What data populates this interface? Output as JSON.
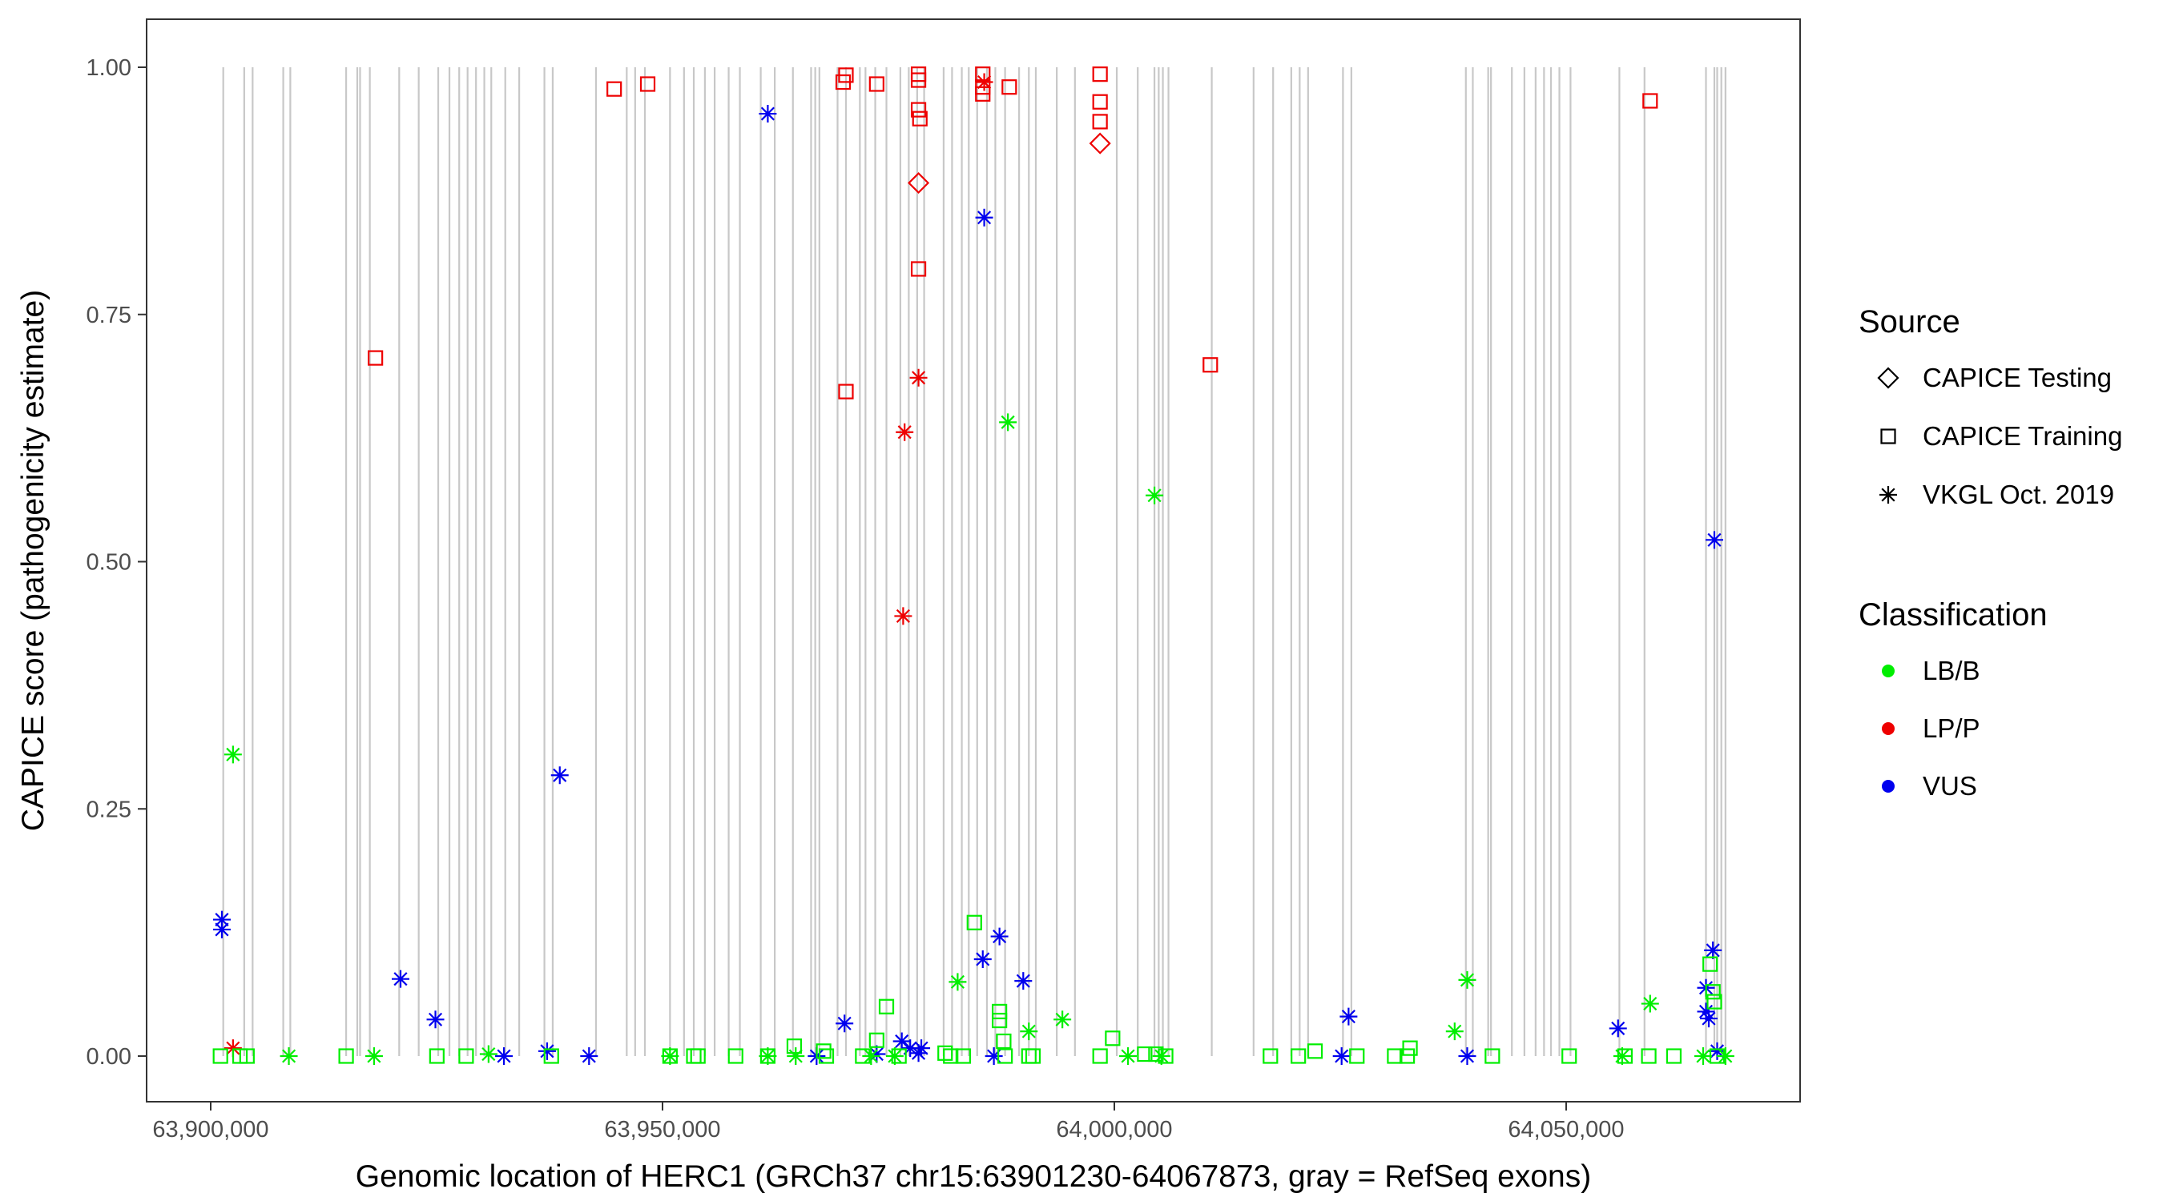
{
  "chart_data": {
    "type": "scatter",
    "title": "",
    "xlabel": "Genomic location of HERC1 (GRCh37 chr15:63901230-64067873, gray = RefSeq exons)",
    "ylabel": "CAPICE score (pathogenicity estimate)",
    "xlim": [
      63893000,
      64072000
    ],
    "ylim": [
      -0.05,
      1.05
    ],
    "x_ticks": [
      63900000,
      63950000,
      64000000,
      64050000
    ],
    "x_tick_labels": [
      "63,900,000",
      "63,950,000",
      "64,000,000",
      "64,050,000"
    ],
    "y_ticks": [
      0,
      0.25,
      0.5,
      0.75,
      1.0
    ],
    "y_tick_labels": [
      "0.00",
      "0.25",
      "0.50",
      "0.75",
      "1.00"
    ],
    "grid": false,
    "legend_placement": "right",
    "legend": {
      "source_title": "Source",
      "source_items": [
        {
          "label": "CAPICE Testing",
          "shape": "diamond"
        },
        {
          "label": "CAPICE Training",
          "shape": "square"
        },
        {
          "label": "VKGL Oct. 2019",
          "shape": "asterisk"
        }
      ],
      "class_title": "Classification",
      "class_items": [
        {
          "label": "LB/B",
          "color": "#00ee00"
        },
        {
          "label": "LP/P",
          "color": "#ee0000"
        },
        {
          "label": "VUS",
          "color": "#0000ee"
        }
      ]
    },
    "exon_color": "#c8c8c8",
    "exons": [
      63901390,
      63903710,
      63904640,
      63908030,
      63908810,
      63914990,
      63916220,
      63916530,
      63917610,
      63920860,
      63923020,
      63925180,
      63926420,
      63927500,
      63928430,
      63929360,
      63930280,
      63931050,
      63932600,
      63934140,
      63936930,
      63937850,
      63942640,
      63946040,
      63946970,
      63948050,
      63950830,
      63952380,
      63953460,
      63954690,
      63955770,
      63957320,
      63958560,
      63960870,
      63962420,
      63964430,
      63966440,
      63966900,
      63967360,
      63969370,
      63970300,
      63971840,
      63972460,
      63973540,
      63974780,
      63976320,
      63977250,
      63978180,
      63978950,
      63981110,
      63982040,
      63983120,
      63983890,
      63984820,
      63985900,
      63986830,
      63987910,
      63989460,
      63990540,
      63991310,
      63993630,
      63995640,
      64000270,
      64002590,
      64004440,
      64004910,
      64005370,
      64005990,
      64010780,
      64015410,
      64017570,
      64019580,
      64020510,
      64021440,
      64025300,
      64026230,
      64038900,
      64039670,
      64041370,
      64041680,
      64043990,
      64045380,
      64046620,
      64047550,
      64048320,
      64049250,
      64050480,
      64055890,
      64058670,
      64065470,
      64066400,
      64066710,
      64067170,
      64067630
    ],
    "point_fields": [
      "position",
      "score",
      "source",
      "classification"
    ],
    "points": [
      [
        63944650,
        0.978,
        "CAPICE Training",
        "LP/P"
      ],
      [
        63948360,
        0.983,
        "CAPICE Training",
        "LP/P"
      ],
      [
        63969990,
        0.985,
        "CAPICE Training",
        "LP/P"
      ],
      [
        63970300,
        0.992,
        "CAPICE Training",
        "LP/P"
      ],
      [
        63973700,
        0.983,
        "CAPICE Training",
        "LP/P"
      ],
      [
        63978330,
        0.993,
        "CAPICE Training",
        "LP/P"
      ],
      [
        63978330,
        0.987,
        "CAPICE Training",
        "LP/P"
      ],
      [
        63978330,
        0.957,
        "CAPICE Training",
        "LP/P"
      ],
      [
        63978480,
        0.948,
        "CAPICE Training",
        "LP/P"
      ],
      [
        63985440,
        0.993,
        "CAPICE Training",
        "LP/P"
      ],
      [
        63985440,
        0.98,
        "CAPICE Training",
        "LP/P"
      ],
      [
        63985440,
        0.973,
        "CAPICE Training",
        "LP/P"
      ],
      [
        63988370,
        0.98,
        "CAPICE Training",
        "LP/P"
      ],
      [
        63998420,
        0.993,
        "CAPICE Training",
        "LP/P"
      ],
      [
        63998420,
        0.965,
        "CAPICE Training",
        "LP/P"
      ],
      [
        63998420,
        0.945,
        "CAPICE Training",
        "LP/P"
      ],
      [
        64059290,
        0.966,
        "CAPICE Training",
        "LP/P"
      ],
      [
        63918230,
        0.706,
        "CAPICE Training",
        "LP/P"
      ],
      [
        63970300,
        0.672,
        "CAPICE Training",
        "LP/P"
      ],
      [
        63978330,
        0.796,
        "CAPICE Training",
        "LP/P"
      ],
      [
        64010620,
        0.699,
        "CAPICE Training",
        "LP/P"
      ],
      [
        63978330,
        0.883,
        "CAPICE Testing",
        "LP/P"
      ],
      [
        63998420,
        0.923,
        "CAPICE Testing",
        "LP/P"
      ],
      [
        63985600,
        0.985,
        "VKGL Oct. 2019",
        "LP/P"
      ],
      [
        63978330,
        0.686,
        "VKGL Oct. 2019",
        "LP/P"
      ],
      [
        63976790,
        0.631,
        "VKGL Oct. 2019",
        "LP/P"
      ],
      [
        63976630,
        0.445,
        "VKGL Oct. 2019",
        "LP/P"
      ],
      [
        63902470,
        0.008,
        "VKGL Oct. 2019",
        "LP/P"
      ],
      [
        63961650,
        0.953,
        "VKGL Oct. 2019",
        "VUS"
      ],
      [
        63985600,
        0.848,
        "VKGL Oct. 2019",
        "VUS"
      ],
      [
        64066400,
        0.522,
        "VKGL Oct. 2019",
        "VUS"
      ],
      [
        63938630,
        0.284,
        "VKGL Oct. 2019",
        "VUS"
      ],
      [
        63901240,
        0.138,
        "VKGL Oct. 2019",
        "VUS"
      ],
      [
        63901240,
        0.128,
        "VKGL Oct. 2019",
        "VUS"
      ],
      [
        63921010,
        0.078,
        "VKGL Oct. 2019",
        "VUS"
      ],
      [
        63924870,
        0.037,
        "VKGL Oct. 2019",
        "VUS"
      ],
      [
        63932450,
        0.0,
        "VKGL Oct. 2019",
        "VUS"
      ],
      [
        63937230,
        0.005,
        "VKGL Oct. 2019",
        "VUS"
      ],
      [
        63941870,
        0.0,
        "VKGL Oct. 2019",
        "VUS"
      ],
      [
        63967050,
        0.0,
        "VKGL Oct. 2019",
        "VUS"
      ],
      [
        63970140,
        0.033,
        "VKGL Oct. 2019",
        "VUS"
      ],
      [
        63973700,
        0.002,
        "VKGL Oct. 2019",
        "VUS"
      ],
      [
        63976480,
        0.015,
        "VKGL Oct. 2019",
        "VUS"
      ],
      [
        63977410,
        0.008,
        "VKGL Oct. 2019",
        "VUS"
      ],
      [
        63978330,
        0.003,
        "VKGL Oct. 2019",
        "VUS"
      ],
      [
        63978640,
        0.008,
        "VKGL Oct. 2019",
        "VUS"
      ],
      [
        63985440,
        0.098,
        "VKGL Oct. 2019",
        "VUS"
      ],
      [
        63987290,
        0.121,
        "VKGL Oct. 2019",
        "VUS"
      ],
      [
        63986670,
        0.0,
        "VKGL Oct. 2019",
        "VUS"
      ],
      [
        63989920,
        0.076,
        "VKGL Oct. 2019",
        "VUS"
      ],
      [
        64025150,
        0.0,
        "VKGL Oct. 2019",
        "VUS"
      ],
      [
        64025920,
        0.04,
        "VKGL Oct. 2019",
        "VUS"
      ],
      [
        64039050,
        0.0,
        "VKGL Oct. 2019",
        "VUS"
      ],
      [
        64055740,
        0.028,
        "VKGL Oct. 2019",
        "VUS"
      ],
      [
        64065470,
        0.069,
        "VKGL Oct. 2019",
        "VUS"
      ],
      [
        64065470,
        0.045,
        "VKGL Oct. 2019",
        "VUS"
      ],
      [
        64065780,
        0.038,
        "VKGL Oct. 2019",
        "VUS"
      ],
      [
        64066240,
        0.107,
        "VKGL Oct. 2019",
        "VUS"
      ],
      [
        64066710,
        0.005,
        "VKGL Oct. 2019",
        "VUS"
      ],
      [
        63902470,
        0.305,
        "VKGL Oct. 2019",
        "LB/B"
      ],
      [
        63908650,
        0.0,
        "VKGL Oct. 2019",
        "LB/B"
      ],
      [
        63918080,
        0.0,
        "VKGL Oct. 2019",
        "LB/B"
      ],
      [
        63930750,
        0.002,
        "VKGL Oct. 2019",
        "LB/B"
      ],
      [
        63950830,
        0.0,
        "VKGL Oct. 2019",
        "LB/B"
      ],
      [
        63961650,
        0.0,
        "VKGL Oct. 2019",
        "LB/B"
      ],
      [
        63964740,
        0.0,
        "VKGL Oct. 2019",
        "LB/B"
      ],
      [
        63973080,
        0.0,
        "VKGL Oct. 2019",
        "LB/B"
      ],
      [
        63975700,
        0.0,
        "VKGL Oct. 2019",
        "LB/B"
      ],
      [
        63982660,
        0.075,
        "VKGL Oct. 2019",
        "LB/B"
      ],
      [
        63988220,
        0.641,
        "VKGL Oct. 2019",
        "LB/B"
      ],
      [
        63990540,
        0.025,
        "VKGL Oct. 2019",
        "LB/B"
      ],
      [
        63994250,
        0.037,
        "VKGL Oct. 2019",
        "LB/B"
      ],
      [
        64001510,
        0.0,
        "VKGL Oct. 2019",
        "LB/B"
      ],
      [
        64004440,
        0.567,
        "VKGL Oct. 2019",
        "LB/B"
      ],
      [
        64005210,
        0.0,
        "VKGL Oct. 2019",
        "LB/B"
      ],
      [
        64037660,
        0.025,
        "VKGL Oct. 2019",
        "LB/B"
      ],
      [
        64039050,
        0.077,
        "VKGL Oct. 2019",
        "LB/B"
      ],
      [
        64059290,
        0.053,
        "VKGL Oct. 2019",
        "LB/B"
      ],
      [
        64056200,
        0.0,
        "VKGL Oct. 2019",
        "LB/B"
      ],
      [
        64065160,
        0.0,
        "VKGL Oct. 2019",
        "LB/B"
      ],
      [
        64067630,
        0.0,
        "VKGL Oct. 2019",
        "LB/B"
      ],
      [
        63901080,
        0.0,
        "CAPICE Training",
        "LB/B"
      ],
      [
        63903240,
        0.0,
        "CAPICE Training",
        "LB/B"
      ],
      [
        63904020,
        0.0,
        "CAPICE Training",
        "LB/B"
      ],
      [
        63914990,
        0.0,
        "CAPICE Training",
        "LB/B"
      ],
      [
        63925030,
        0.0,
        "CAPICE Training",
        "LB/B"
      ],
      [
        63928270,
        0.0,
        "CAPICE Training",
        "LB/B"
      ],
      [
        63937700,
        0.0,
        "CAPICE Training",
        "LB/B"
      ],
      [
        63950830,
        0.0,
        "CAPICE Training",
        "LB/B"
      ],
      [
        63953460,
        0.0,
        "CAPICE Training",
        "LB/B"
      ],
      [
        63953920,
        0.0,
        "CAPICE Training",
        "LB/B"
      ],
      [
        63958090,
        0.0,
        "CAPICE Training",
        "LB/B"
      ],
      [
        63961650,
        0.0,
        "CAPICE Training",
        "LB/B"
      ],
      [
        63964580,
        0.01,
        "CAPICE Training",
        "LB/B"
      ],
      [
        63967830,
        0.005,
        "CAPICE Training",
        "LB/B"
      ],
      [
        63968130,
        0.0,
        "CAPICE Training",
        "LB/B"
      ],
      [
        63972150,
        0.0,
        "CAPICE Training",
        "LB/B"
      ],
      [
        63973700,
        0.016,
        "CAPICE Training",
        "LB/B"
      ],
      [
        63974780,
        0.05,
        "CAPICE Training",
        "LB/B"
      ],
      [
        63976170,
        0.0,
        "CAPICE Training",
        "LB/B"
      ],
      [
        63981270,
        0.003,
        "CAPICE Training",
        "LB/B"
      ],
      [
        63981890,
        0.0,
        "CAPICE Training",
        "LB/B"
      ],
      [
        63983280,
        0.0,
        "CAPICE Training",
        "LB/B"
      ],
      [
        63984510,
        0.135,
        "CAPICE Training",
        "LB/B"
      ],
      [
        63987290,
        0.045,
        "CAPICE Training",
        "LB/B"
      ],
      [
        63987290,
        0.036,
        "CAPICE Training",
        "LB/B"
      ],
      [
        63987760,
        0.015,
        "CAPICE Training",
        "LB/B"
      ],
      [
        63987910,
        0.0,
        "CAPICE Training",
        "LB/B"
      ],
      [
        63990540,
        0.0,
        "CAPICE Training",
        "LB/B"
      ],
      [
        63991000,
        0.0,
        "CAPICE Training",
        "LB/B"
      ],
      [
        63998420,
        0.0,
        "CAPICE Training",
        "LB/B"
      ],
      [
        63999810,
        0.018,
        "CAPICE Training",
        "LB/B"
      ],
      [
        64003360,
        0.002,
        "CAPICE Training",
        "LB/B"
      ],
      [
        64004600,
        0.002,
        "CAPICE Training",
        "LB/B"
      ],
      [
        64005680,
        0.0,
        "CAPICE Training",
        "LB/B"
      ],
      [
        64017270,
        0.0,
        "CAPICE Training",
        "LB/B"
      ],
      [
        64020360,
        0.0,
        "CAPICE Training",
        "LB/B"
      ],
      [
        64022210,
        0.005,
        "CAPICE Training",
        "LB/B"
      ],
      [
        64026840,
        0.0,
        "CAPICE Training",
        "LB/B"
      ],
      [
        64031020,
        0.0,
        "CAPICE Training",
        "LB/B"
      ],
      [
        64032410,
        0.0,
        "CAPICE Training",
        "LB/B"
      ],
      [
        64032720,
        0.008,
        "CAPICE Training",
        "LB/B"
      ],
      [
        64041830,
        0.0,
        "CAPICE Training",
        "LB/B"
      ],
      [
        64050330,
        0.0,
        "CAPICE Training",
        "LB/B"
      ],
      [
        64056510,
        0.0,
        "CAPICE Training",
        "LB/B"
      ],
      [
        64059140,
        0.0,
        "CAPICE Training",
        "LB/B"
      ],
      [
        64061920,
        0.0,
        "CAPICE Training",
        "LB/B"
      ],
      [
        64065930,
        0.093,
        "CAPICE Training",
        "LB/B"
      ],
      [
        64066240,
        0.065,
        "CAPICE Training",
        "LB/B"
      ],
      [
        64066400,
        0.055,
        "CAPICE Training",
        "LB/B"
      ],
      [
        64066710,
        0.0,
        "CAPICE Training",
        "LB/B"
      ]
    ]
  }
}
